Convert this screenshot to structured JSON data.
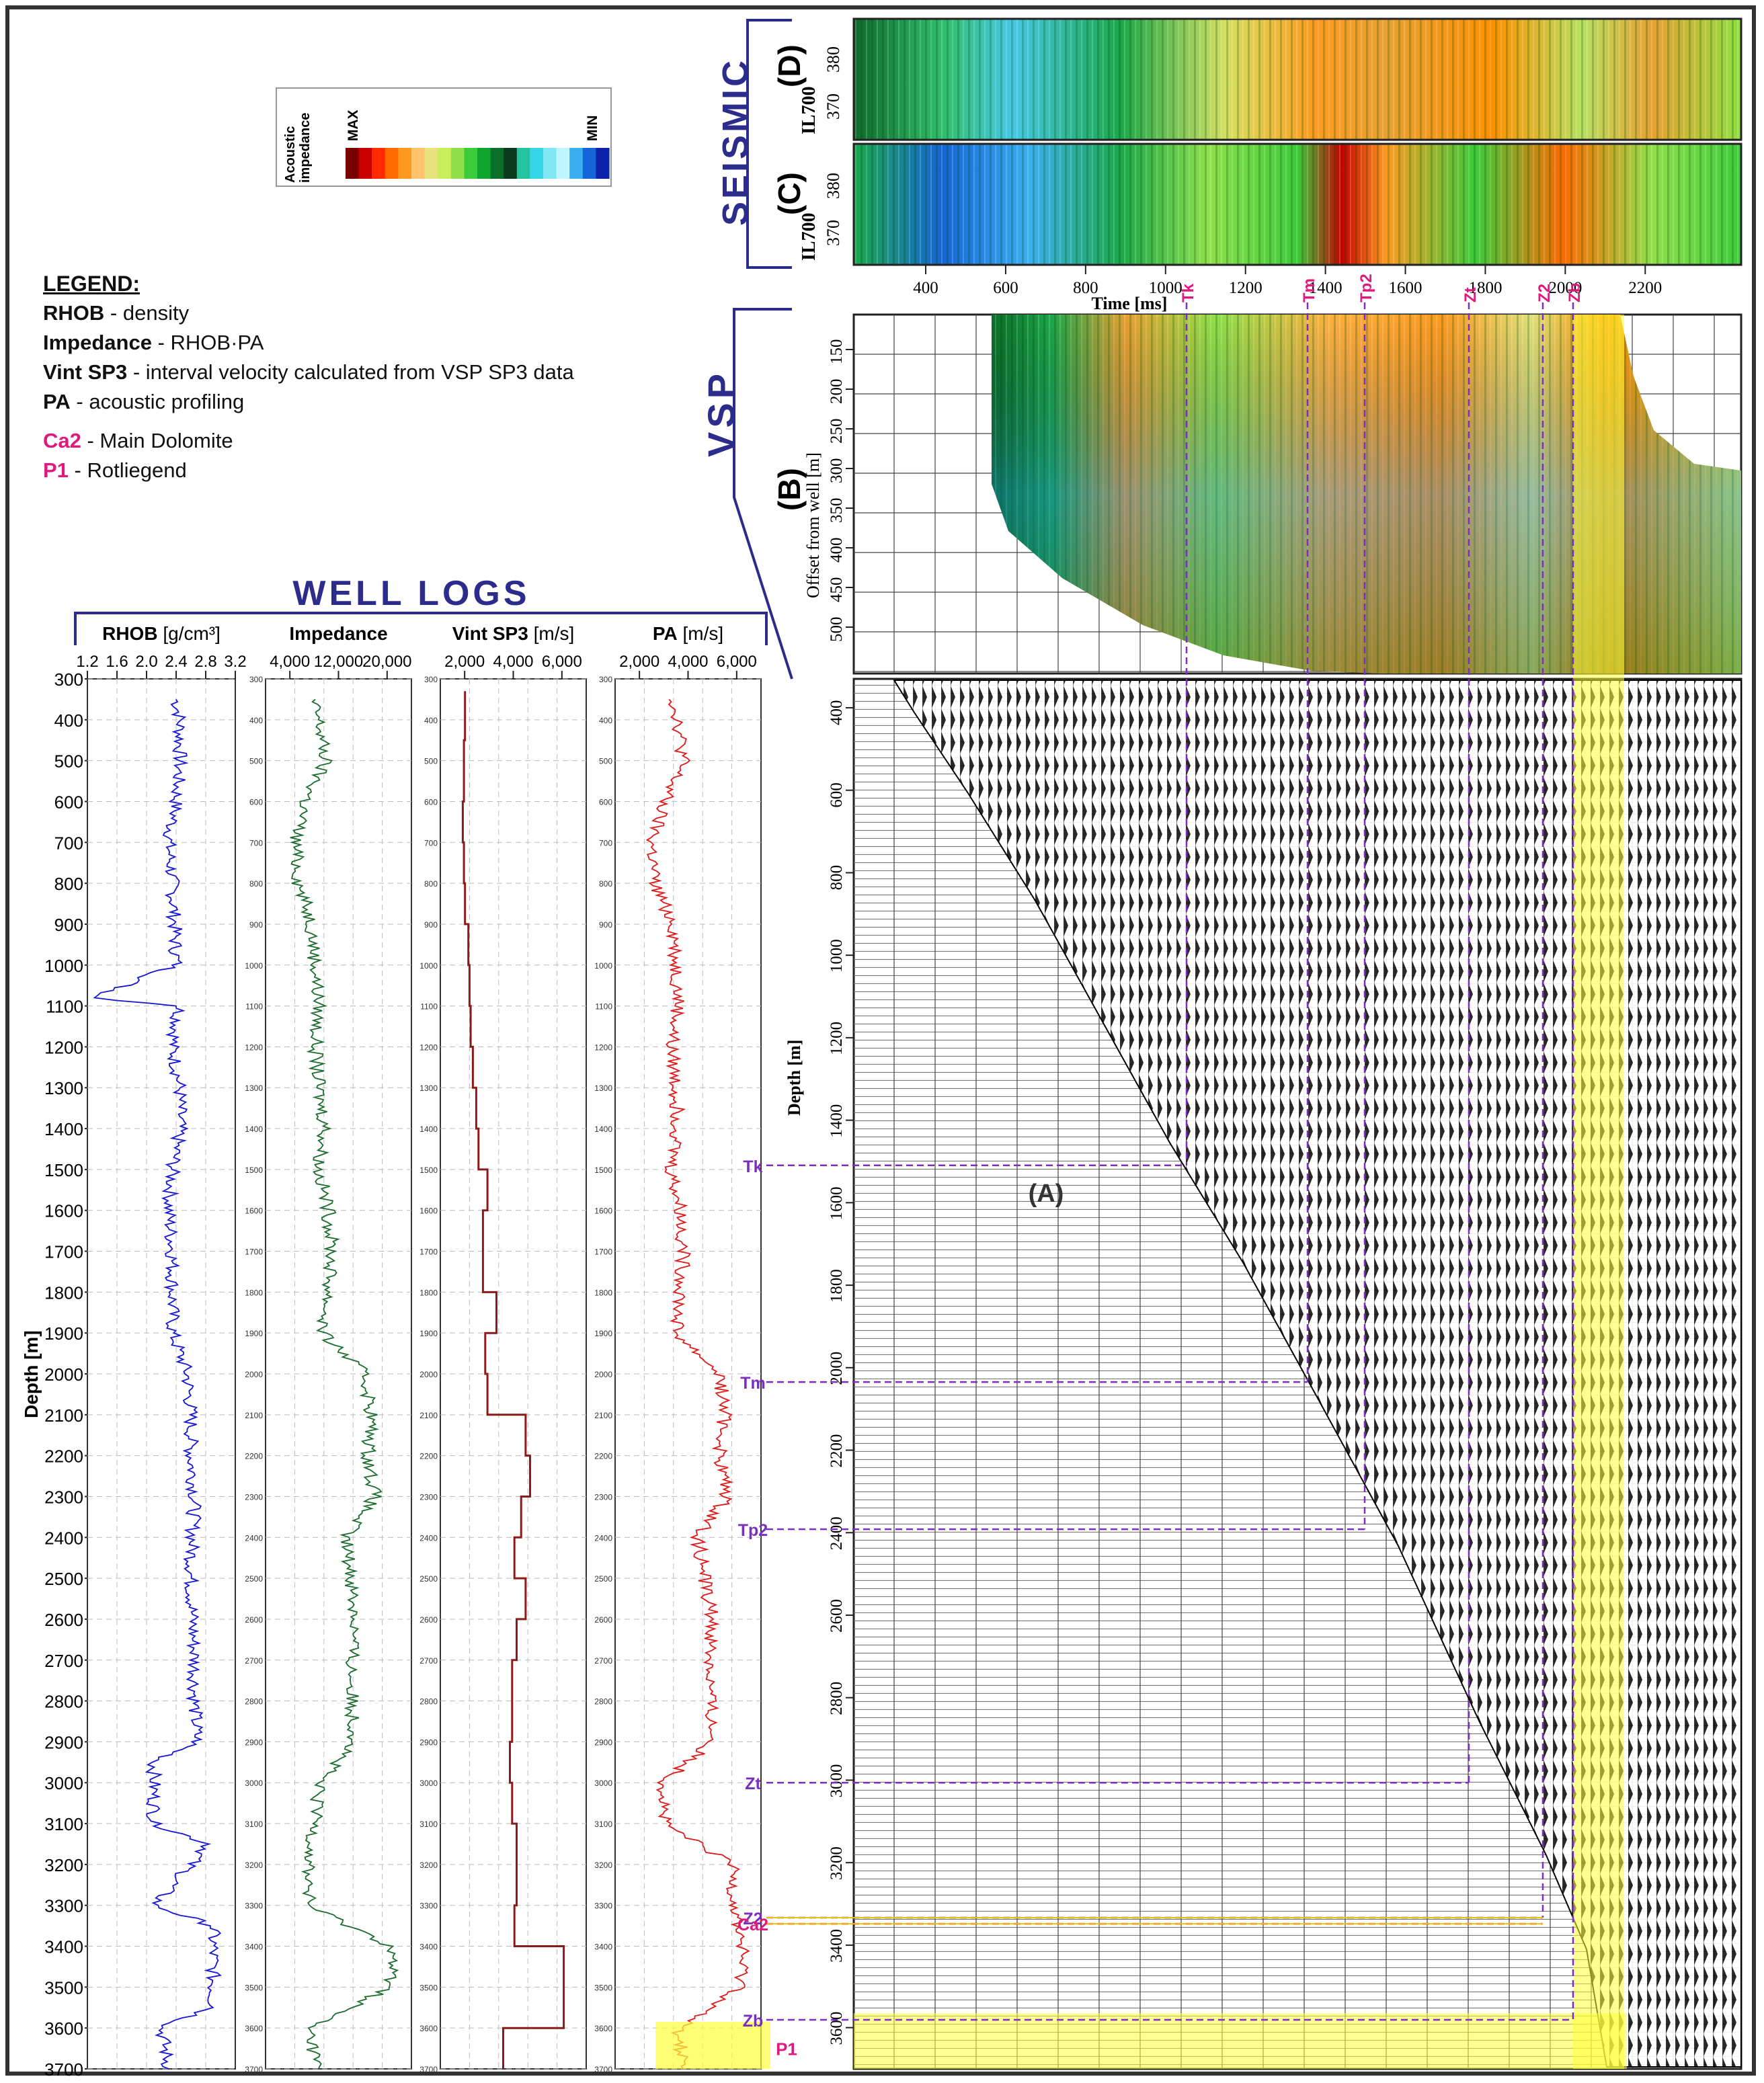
{
  "legend": {
    "title": "LEGEND:",
    "items": [
      {
        "key": "RHOB",
        "desc": "- density"
      },
      {
        "key": "Impedance",
        "desc": "- RHOB·PA"
      },
      {
        "key": "Vint SP3",
        "desc": "- interval velocity calculated from VSP SP3 data"
      },
      {
        "key": "PA",
        "desc": "- acoustic profiling"
      }
    ],
    "formations": [
      {
        "key": "Ca2",
        "desc": "- Main Dolomite"
      },
      {
        "key": "P1",
        "desc": "- Rotliegend"
      }
    ]
  },
  "colorbar": {
    "label_line1": "Acoustic",
    "label_line2": "impedance",
    "max_label": "MAX",
    "min_label": "MIN",
    "colors": [
      "#7a0000",
      "#c80000",
      "#ff2a00",
      "#ff6a00",
      "#ff9a1e",
      "#ffc36e",
      "#e8e27a",
      "#c8ee5a",
      "#8fe04a",
      "#3ccc3a",
      "#0fa52e",
      "#0a6f28",
      "#0b3a1f",
      "#25c2a0",
      "#35d6e8",
      "#7fe8f5",
      "#bff5ff",
      "#3ab0f0",
      "#1565d8",
      "#0a23a8"
    ]
  },
  "sections": {
    "seismic": "SEISMIC",
    "vsp": "VSP",
    "well_logs": "WELL LOGS",
    "panel_d": "(D)",
    "panel_c": "(C)",
    "panel_b": "(B)",
    "panel_a": "(A)"
  },
  "seismic_panel": {
    "inline_label": "IL700",
    "yticks": [
      "380",
      "370"
    ],
    "xticks": [
      "400",
      "600",
      "800",
      "1000",
      "1200",
      "1400",
      "1600",
      "1800",
      "2000",
      "2200"
    ],
    "xlabel": "Time [ms]"
  },
  "vsp_panel": {
    "ylabel": "Offset from well [m]",
    "yticks": [
      "150",
      "200",
      "250",
      "300",
      "350",
      "400",
      "450",
      "500"
    ]
  },
  "vsp_depth_panel": {
    "ylabel": "Depth [m]",
    "yticks": [
      "400",
      "600",
      "800",
      "1000",
      "1200",
      "1400",
      "1600",
      "1800",
      "2000",
      "2200",
      "2400",
      "2600",
      "2800",
      "3000",
      "3200",
      "3400",
      "3600"
    ]
  },
  "chart_data": {
    "type": "line",
    "depth_label": "Depth [m]",
    "depth_range": [
      300,
      3700
    ],
    "depth_ticks": [
      300,
      400,
      500,
      600,
      700,
      800,
      900,
      1000,
      1100,
      1200,
      1300,
      1400,
      1500,
      1600,
      1700,
      1800,
      1900,
      2000,
      2100,
      2200,
      2300,
      2400,
      2500,
      2600,
      2700,
      2800,
      2900,
      3000,
      3100,
      3200,
      3300,
      3400,
      3500,
      3600,
      3700
    ],
    "tracks": [
      {
        "name": "RHOB",
        "unit": "[g/cm³]",
        "color": "#1515d6",
        "xlim": [
          1.2,
          3.2
        ],
        "ticks": [
          "1.2",
          "1.6",
          "2.0",
          "2.4",
          "2.8",
          "3.2"
        ],
        "depths": [
          350,
          400,
          500,
          600,
          700,
          800,
          900,
          1000,
          1080,
          1100,
          1200,
          1300,
          1400,
          1500,
          1600,
          1700,
          1800,
          1900,
          2000,
          2100,
          2200,
          2300,
          2400,
          2500,
          2600,
          2700,
          2800,
          2900,
          2950,
          3100,
          3150,
          3300,
          3350,
          3550,
          3600,
          3700
        ],
        "values": [
          2.4,
          2.45,
          2.45,
          2.4,
          2.3,
          2.35,
          2.38,
          2.4,
          1.3,
          2.45,
          2.35,
          2.45,
          2.45,
          2.35,
          2.3,
          2.35,
          2.35,
          2.35,
          2.55,
          2.6,
          2.6,
          2.65,
          2.62,
          2.6,
          2.62,
          2.65,
          2.65,
          2.68,
          2.1,
          2.1,
          2.85,
          2.1,
          2.9,
          2.9,
          2.2,
          2.3
        ]
      },
      {
        "name": "Impedance",
        "unit": "",
        "color": "#1a6b2d",
        "xlim": [
          0,
          22000
        ],
        "ticks": [
          "4,000",
          "12,000",
          "20,000"
        ],
        "depths": [
          350,
          400,
          500,
          600,
          700,
          800,
          900,
          1000,
          1100,
          1200,
          1300,
          1400,
          1500,
          1600,
          1700,
          1800,
          1900,
          2000,
          2100,
          2200,
          2300,
          2400,
          2500,
          2600,
          2700,
          2800,
          2900,
          3000,
          3100,
          3200,
          3300,
          3400,
          3500,
          3600,
          3700
        ],
        "values": [
          7000,
          8000,
          9000,
          6000,
          4500,
          5000,
          7000,
          7500,
          8000,
          7500,
          8000,
          9000,
          8000,
          9500,
          10000,
          9500,
          8500,
          15000,
          16000,
          15500,
          16500,
          12000,
          13000,
          13500,
          13000,
          13000,
          13500,
          8000,
          7500,
          6500,
          6500,
          19000,
          19000,
          6500,
          8000
        ]
      },
      {
        "name": "Vint SP3",
        "unit": "[m/s]",
        "color": "#8b1a1a",
        "xlim": [
          1000,
          7500
        ],
        "ticks": [
          "2,000",
          "4,000",
          "6,000"
        ],
        "depths": [
          330,
          450,
          600,
          700,
          800,
          900,
          1000,
          1100,
          1200,
          1300,
          1400,
          1500,
          1600,
          1700,
          1800,
          1900,
          2000,
          2100,
          2200,
          2300,
          2400,
          2500,
          2600,
          2700,
          2800,
          2900,
          3000,
          3100,
          3200,
          3300,
          3400,
          3500,
          3600,
          3700
        ],
        "values": [
          2100,
          2050,
          2000,
          2050,
          2100,
          2250,
          2300,
          2350,
          2450,
          2600,
          2700,
          3100,
          2900,
          2900,
          3500,
          3000,
          3100,
          4800,
          5000,
          4600,
          4300,
          4800,
          4400,
          4200,
          4200,
          4100,
          4200,
          4400,
          4400,
          4300,
          6500,
          6500,
          3800,
          3800
        ]
      },
      {
        "name": "PA",
        "unit": "[m/s]",
        "color": "#e01818",
        "xlim": [
          1000,
          7000
        ],
        "ticks": [
          "2,000",
          "4,000",
          "6,000"
        ],
        "depths": [
          350,
          400,
          500,
          600,
          700,
          800,
          900,
          1000,
          1100,
          1200,
          1300,
          1400,
          1500,
          1600,
          1700,
          1800,
          1900,
          2000,
          2100,
          2200,
          2300,
          2400,
          2500,
          2600,
          2700,
          2800,
          2900,
          3000,
          3100,
          3200,
          3300,
          3400,
          3500,
          3600,
          3700
        ],
        "values": [
          3400,
          3600,
          3800,
          3000,
          2500,
          2600,
          3400,
          3500,
          3600,
          3300,
          3500,
          3600,
          3300,
          3700,
          3800,
          3700,
          3500,
          5300,
          5500,
          5300,
          5600,
          4400,
          4700,
          5000,
          4900,
          4900,
          5000,
          3000,
          3000,
          5800,
          5900,
          6200,
          6200,
          3600,
          3800
        ]
      }
    ],
    "horizons": [
      {
        "name": "Tk",
        "depth": 1490,
        "color": "#7b2fbe"
      },
      {
        "name": "Tm",
        "depth": 2020,
        "color": "#7b2fbe"
      },
      {
        "name": "Tp2",
        "depth": 2380,
        "color": "#7b2fbe"
      },
      {
        "name": "Zt",
        "depth": 3000,
        "color": "#7b2fbe"
      },
      {
        "name": "Z2",
        "depth": 3330,
        "color": "#7b2fbe"
      },
      {
        "name": "Ca2",
        "depth": 3345,
        "color": "#e0197d"
      },
      {
        "name": "Zb",
        "depth": 3580,
        "color": "#7b2fbe"
      },
      {
        "name": "P1",
        "depth": 3650,
        "color": "#e0197d"
      }
    ],
    "time_horizon_labels": [
      "Tk",
      "Tm",
      "Tp2",
      "Zt",
      "Z2",
      "Zb"
    ]
  }
}
